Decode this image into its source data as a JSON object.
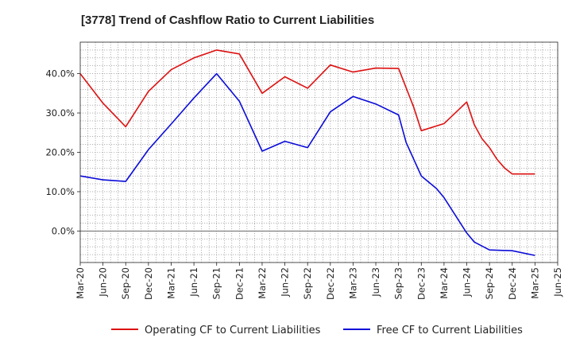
{
  "chart_data": {
    "type": "line",
    "title": "[3778]  Trend of Cashflow Ratio to Current Liabilities",
    "xlabel": "",
    "ylabel": "",
    "x_tick_labels": [
      "Mar-20",
      "Jun-20",
      "Sep-20",
      "Dec-20",
      "Mar-21",
      "Jun-21",
      "Sep-21",
      "Dec-21",
      "Mar-22",
      "Jun-22",
      "Sep-22",
      "Dec-22",
      "Mar-23",
      "Jun-23",
      "Sep-23",
      "Dec-23",
      "Mar-24",
      "Jun-24",
      "Sep-24",
      "Dec-24",
      "Mar-25",
      "Jun-25"
    ],
    "y_ticks": [
      0,
      10,
      20,
      30,
      40
    ],
    "y_tick_labels": [
      "0.0%",
      "10.0%",
      "20.0%",
      "30.0%",
      "40.0%"
    ],
    "ylim": [
      -8,
      48
    ],
    "grid": true,
    "legend_position": "bottom",
    "series": [
      {
        "name": "Operating CF to Current Liabilities",
        "color": "#dd1111",
        "points": [
          [
            "Mar-20",
            40.0
          ],
          [
            "Jun-20",
            32.5
          ],
          [
            "Sep-20",
            26.5
          ],
          [
            "Dec-20",
            35.5
          ],
          [
            "Mar-21",
            41.0
          ],
          [
            "Jun-21",
            44.0
          ],
          [
            "Sep-21",
            46.0
          ],
          [
            "Dec-21",
            45.0
          ],
          [
            "Mar-22",
            35.0
          ],
          [
            "Jun-22",
            39.2
          ],
          [
            "Sep-22",
            36.3
          ],
          [
            "Dec-22",
            42.2
          ],
          [
            "Mar-23",
            40.4
          ],
          [
            "Jun-23",
            41.4
          ],
          [
            "Sep-23",
            41.3
          ],
          [
            "Nov-23",
            31.5
          ],
          [
            "Dec-23",
            25.5
          ],
          [
            "Mar-24",
            27.3
          ],
          [
            "Jun-24",
            32.8
          ],
          [
            "Jul-24",
            27.0
          ],
          [
            "Aug-24",
            23.5
          ],
          [
            "Sep-24",
            21.2
          ],
          [
            "Oct-24",
            18.2
          ],
          [
            "Nov-24",
            16.0
          ],
          [
            "Dec-24",
            14.5
          ],
          [
            "Mar-25",
            14.5
          ]
        ]
      },
      {
        "name": "Free CF to Current Liabilities",
        "color": "#0b0bd9",
        "points": [
          [
            "Mar-20",
            14.0
          ],
          [
            "Jun-20",
            13.0
          ],
          [
            "Sep-20",
            12.6
          ],
          [
            "Dec-20",
            20.7
          ],
          [
            "Mar-21",
            27.2
          ],
          [
            "Jun-21",
            33.8
          ],
          [
            "Sep-21",
            40.0
          ],
          [
            "Dec-21",
            33.0
          ],
          [
            "Mar-22",
            20.3
          ],
          [
            "Jun-22",
            22.8
          ],
          [
            "Sep-22",
            21.2
          ],
          [
            "Dec-22",
            30.3
          ],
          [
            "Mar-23",
            34.2
          ],
          [
            "Jun-23",
            32.3
          ],
          [
            "Sep-23",
            29.5
          ],
          [
            "Oct-23",
            22.5
          ],
          [
            "Dec-23",
            14.0
          ],
          [
            "Feb-24",
            10.8
          ],
          [
            "Mar-24",
            8.5
          ],
          [
            "Jun-24",
            -0.5
          ],
          [
            "Jul-24",
            -2.8
          ],
          [
            "Sep-24",
            -4.8
          ],
          [
            "Dec-24",
            -5.0
          ],
          [
            "Mar-25",
            -6.2
          ]
        ]
      }
    ]
  }
}
